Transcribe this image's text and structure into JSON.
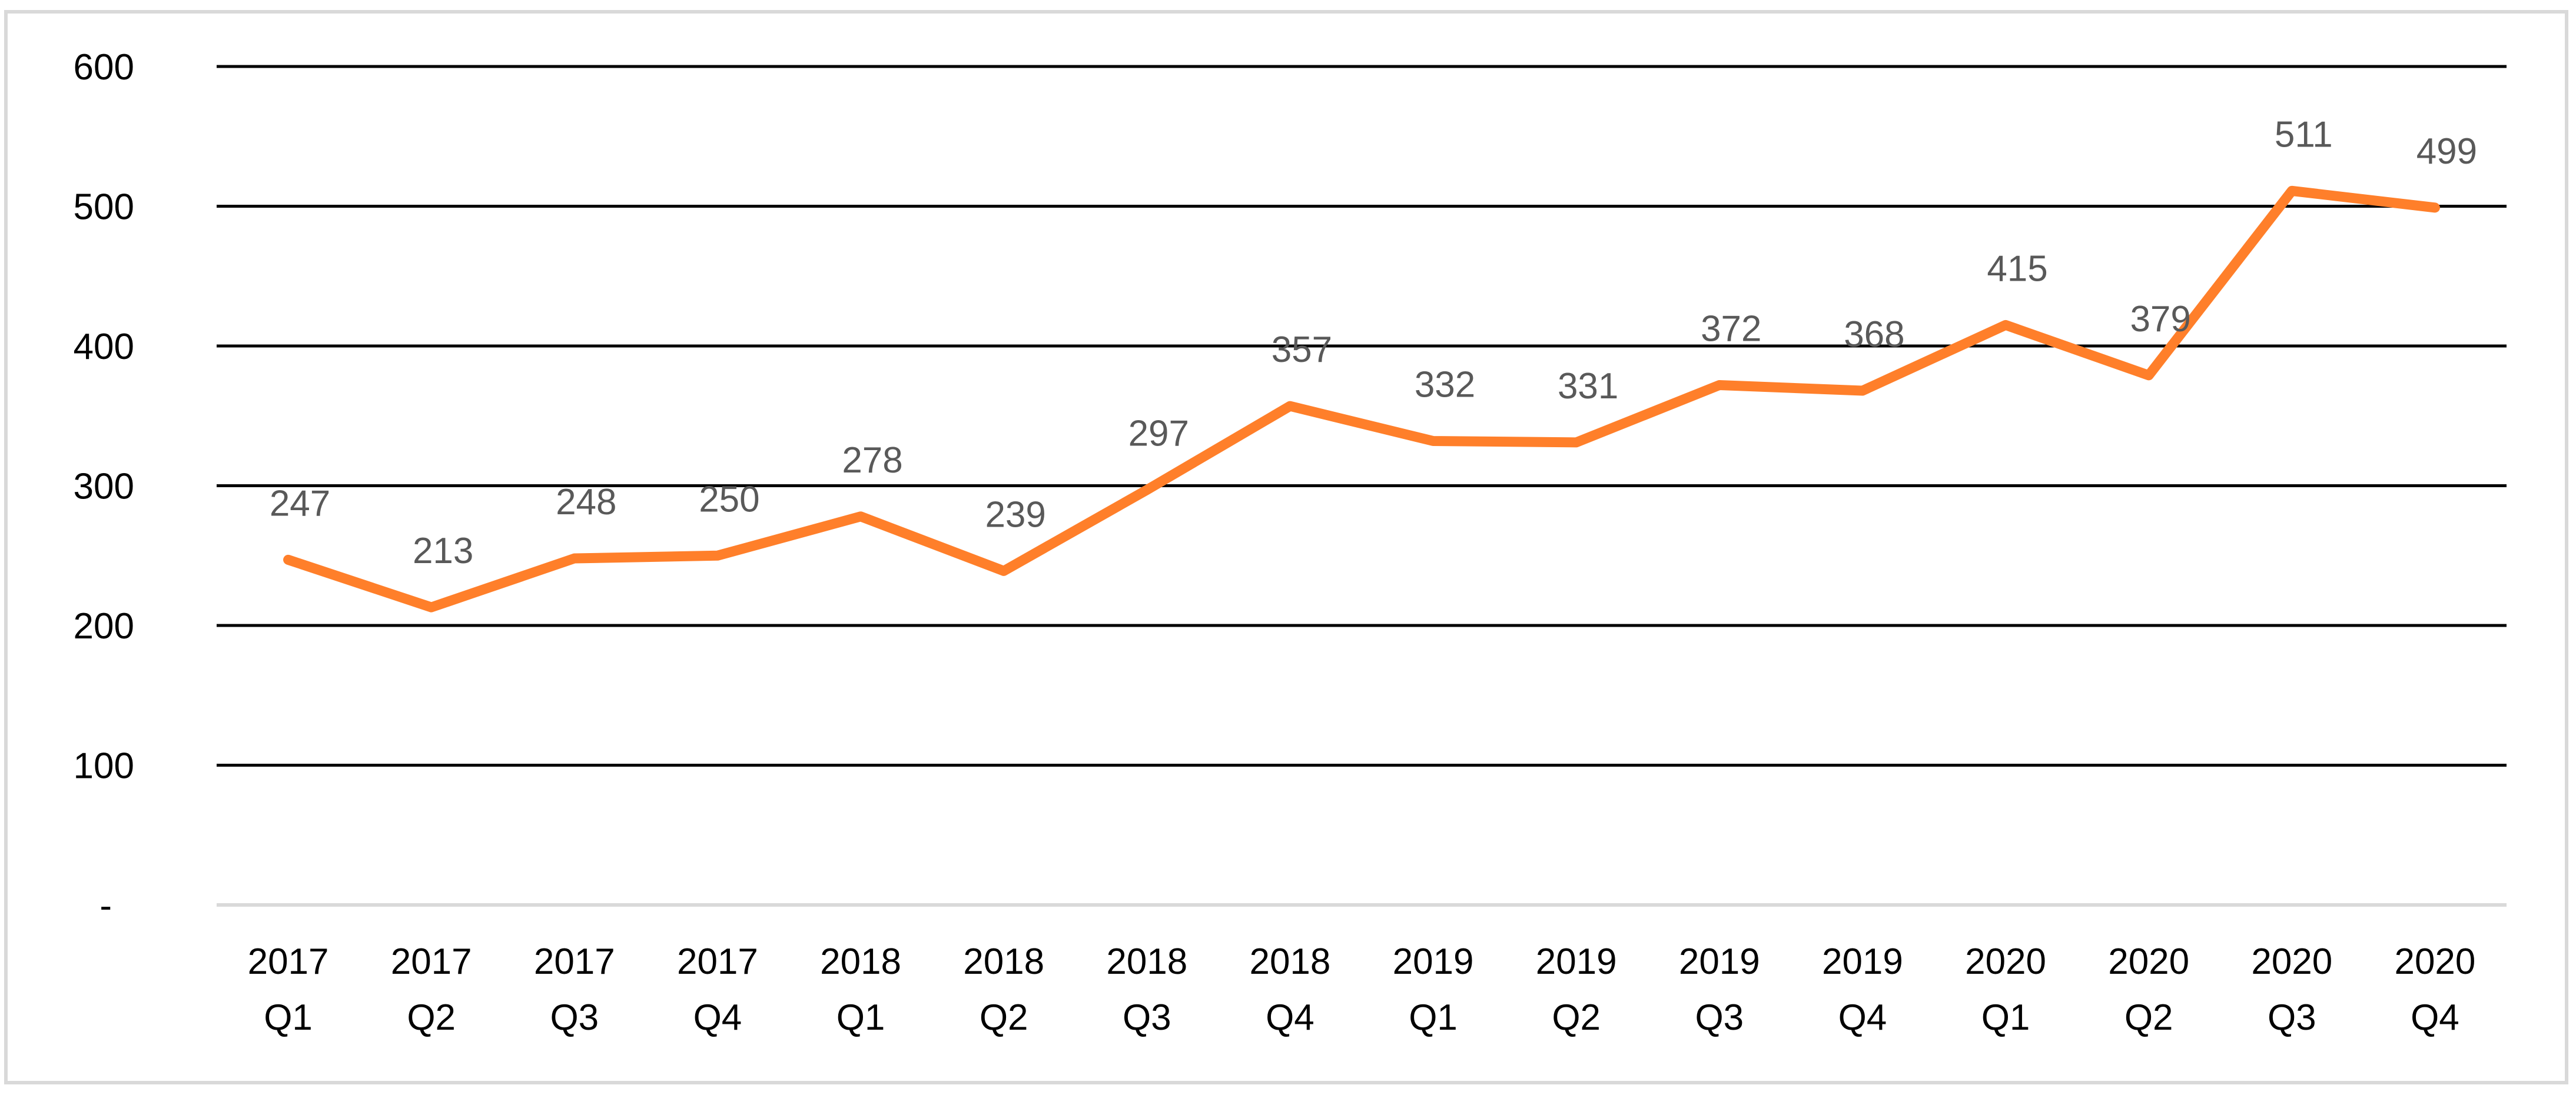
{
  "chart_data": {
    "type": "line",
    "title": "",
    "xlabel": "",
    "ylabel": "",
    "categories": [
      [
        "2017",
        "Q1"
      ],
      [
        "2017",
        "Q2"
      ],
      [
        "2017",
        "Q3"
      ],
      [
        "2017",
        "Q4"
      ],
      [
        "2018",
        "Q1"
      ],
      [
        "2018",
        "Q2"
      ],
      [
        "2018",
        "Q3"
      ],
      [
        "2018",
        "Q4"
      ],
      [
        "2019",
        "Q1"
      ],
      [
        "2019",
        "Q2"
      ],
      [
        "2019",
        "Q3"
      ],
      [
        "2019",
        "Q4"
      ],
      [
        "2020",
        "Q1"
      ],
      [
        "2020",
        "Q2"
      ],
      [
        "2020",
        "Q3"
      ],
      [
        "2020",
        "Q4"
      ]
    ],
    "series": [
      {
        "name": "",
        "color": "#FF7F2A",
        "values": [
          247,
          213,
          248,
          250,
          278,
          239,
          297,
          357,
          332,
          331,
          372,
          368,
          415,
          379,
          511,
          499
        ],
        "data_labels": [
          "247",
          "213",
          "248",
          "250",
          "278",
          "239",
          "297",
          "357",
          "332",
          "331",
          "372",
          "368",
          "415",
          "379",
          "511",
          "499"
        ]
      }
    ],
    "ylim": [
      0,
      600
    ],
    "yticks": [
      0,
      100,
      200,
      300,
      400,
      500,
      600
    ],
    "ytick_labels": [
      "-",
      "100",
      "200",
      "300",
      "400",
      "500",
      "600"
    ],
    "grid": true,
    "legend": "none",
    "gridline_color": "#000000",
    "baseline_color": "#d9d9d9"
  }
}
